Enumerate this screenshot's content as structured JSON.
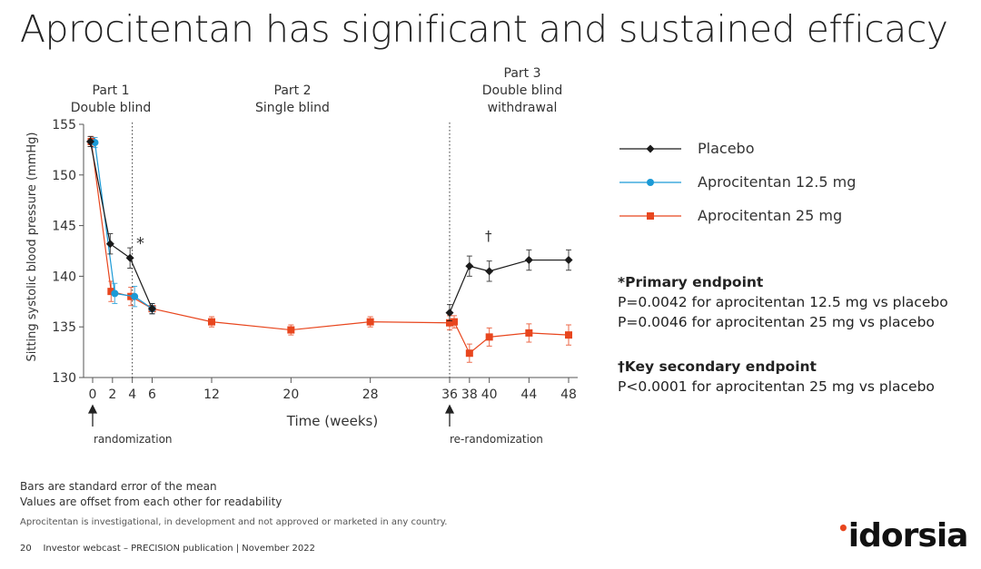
{
  "title": "Aprocitentan has significant and sustained efficacy",
  "parts": [
    {
      "line1": "Part 1",
      "line2": "Double blind"
    },
    {
      "line1": "Part 2",
      "line2": "Single blind"
    },
    {
      "line1": "Part 3",
      "line2": "Double blind",
      "line3": "withdrawal"
    }
  ],
  "annotations": {
    "randomization": "randomization",
    "rerandomization": "re-randomization",
    "asterisk": "*",
    "dagger": "†"
  },
  "chart_data": {
    "type": "line",
    "xlabel": "Time (weeks)",
    "ylabel": "Sitting systolic blood pressure (mmHg)",
    "ylim": [
      130,
      155
    ],
    "yticks": [
      130,
      135,
      140,
      145,
      150,
      155
    ],
    "xticks": [
      0,
      2,
      4,
      6,
      12,
      20,
      28,
      36,
      38,
      40,
      44,
      48
    ],
    "error_bars": "standard error of the mean",
    "series": [
      {
        "name": "Placebo",
        "color": "#1a1a1a",
        "marker": "diamond",
        "points": [
          [
            0,
            153.3,
            0.5
          ],
          [
            2,
            143.2,
            1.0
          ],
          [
            4,
            141.8,
            1.0
          ],
          [
            6,
            136.8,
            0.5
          ],
          null,
          [
            36,
            136.4,
            0.8
          ],
          [
            38,
            141.0,
            1.0
          ],
          [
            40,
            140.5,
            1.0
          ],
          [
            44,
            141.6,
            1.0
          ],
          [
            48,
            141.6,
            1.0
          ]
        ]
      },
      {
        "name": "Aprocitentan 12.5 mg",
        "color": "#1b9ad6",
        "marker": "circle",
        "points": [
          [
            0,
            153.2,
            0.5
          ],
          [
            2,
            138.3,
            1.0
          ],
          [
            4,
            138.0,
            1.0
          ],
          [
            6,
            136.8,
            0.5
          ]
        ]
      },
      {
        "name": "Aprocitentan 25 mg",
        "color": "#e8461e",
        "marker": "square",
        "points": [
          [
            0,
            153.3,
            0.5
          ],
          [
            2,
            138.5,
            1.0
          ],
          [
            4,
            138.0,
            0.9
          ],
          [
            6,
            136.8,
            0.5
          ],
          [
            12,
            135.5,
            0.5
          ],
          [
            20,
            134.7,
            0.5
          ],
          [
            28,
            135.5,
            0.5
          ],
          [
            36,
            135.4,
            0.7
          ],
          [
            36,
            135.5,
            0.6
          ],
          [
            38,
            132.4,
            0.9
          ],
          [
            40,
            134.0,
            0.9
          ],
          [
            44,
            134.4,
            0.9
          ],
          [
            48,
            134.2,
            1.0
          ]
        ]
      }
    ]
  },
  "endpoints": {
    "primary_title": "*Primary endpoint",
    "primary_lines": [
      "P=0.0042 for aprocitentan 12.5 mg vs placebo",
      "P=0.0046 for aprocitentan 25 mg vs placebo"
    ],
    "secondary_title": "†Key secondary endpoint",
    "secondary_lines": [
      "P<0.0001 for aprocitentan 25 mg vs placebo"
    ]
  },
  "notes": [
    "Bars are standard error of the mean",
    "Values are offset from each other for readability"
  ],
  "disclaimer": "Aprocitentan is investigational, in development and not approved or marketed in any country.",
  "footer": {
    "page": "20",
    "text": "Investor webcast – PRECISION publication | November 2022"
  },
  "logo": "idorsia"
}
